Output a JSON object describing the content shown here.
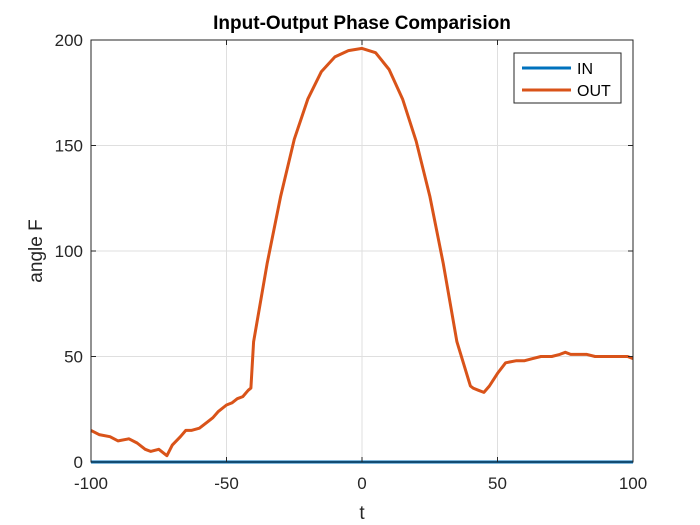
{
  "chart_data": {
    "type": "line",
    "title": "Input-Output Phase Comparision",
    "xlabel": "t",
    "ylabel": "angle F",
    "xlim": [
      -100,
      100
    ],
    "ylim": [
      0,
      200
    ],
    "xticks": [
      -100,
      -50,
      0,
      50,
      100
    ],
    "yticks": [
      0,
      50,
      100,
      150,
      200
    ],
    "grid": true,
    "legend_position": "top-right",
    "series": [
      {
        "name": "IN",
        "color": "#0072BD",
        "x": [
          -100,
          100
        ],
        "y": [
          0,
          0
        ]
      },
      {
        "name": "OUT",
        "color": "#D95319",
        "x": [
          -100,
          -97,
          -93,
          -90,
          -86,
          -83,
          -80,
          -78,
          -75,
          -73,
          -72,
          -70,
          -67,
          -65,
          -63,
          -60,
          -57,
          -55,
          -53,
          -50,
          -48,
          -46,
          -44,
          -42,
          -41,
          -40,
          -35,
          -30,
          -25,
          -20,
          -15,
          -10,
          -5,
          0,
          5,
          10,
          15,
          20,
          25,
          30,
          35,
          40,
          41,
          43,
          45,
          47,
          50,
          53,
          57,
          60,
          63,
          66,
          70,
          73,
          75,
          77,
          80,
          83,
          86,
          89,
          92,
          95,
          98,
          100
        ],
        "y": [
          15,
          13,
          12,
          10,
          11,
          9,
          6,
          5,
          6,
          4,
          3,
          8,
          12,
          15,
          15,
          16,
          19,
          21,
          24,
          27,
          28,
          30,
          31,
          34,
          35,
          57,
          94,
          126,
          153,
          172,
          185,
          192,
          195,
          196,
          194,
          186,
          172,
          152,
          126,
          94,
          57,
          36,
          35,
          34,
          33,
          36,
          42,
          47,
          48,
          48,
          49,
          50,
          50,
          51,
          52,
          51,
          51,
          51,
          50,
          50,
          50,
          50,
          50,
          49
        ]
      }
    ]
  }
}
